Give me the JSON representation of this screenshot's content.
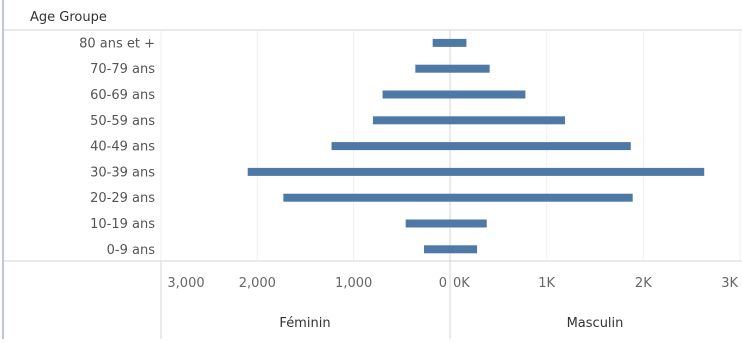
{
  "chart_data": {
    "type": "bar",
    "title": "",
    "row_header": "Age Groupe",
    "categories": [
      "80 ans et +",
      "70-79 ans",
      "60-69 ans",
      "50-59 ans",
      "40-49 ans",
      "30-39 ans",
      "20-29 ans",
      "10-19 ans",
      "0-9 ans"
    ],
    "series": [
      {
        "name": "Féminin",
        "values": [
          180,
          360,
          700,
          800,
          1230,
          2100,
          1730,
          460,
          270
        ],
        "xlim": [
          0,
          3000
        ],
        "ticks": [
          3000,
          2000,
          1000,
          0
        ],
        "tick_labels": [
          "3,000",
          "2,000",
          "1,000",
          "0"
        ]
      },
      {
        "name": "Masculin",
        "values": [
          170,
          410,
          780,
          1190,
          1870,
          2630,
          1890,
          380,
          280
        ],
        "xlim": [
          0,
          3000
        ],
        "ticks": [
          0,
          1000,
          2000,
          3000
        ],
        "tick_labels": [
          "0K",
          "1K",
          "2K",
          "3K"
        ]
      }
    ],
    "bar_color": "#4e79a7",
    "grid": true
  }
}
